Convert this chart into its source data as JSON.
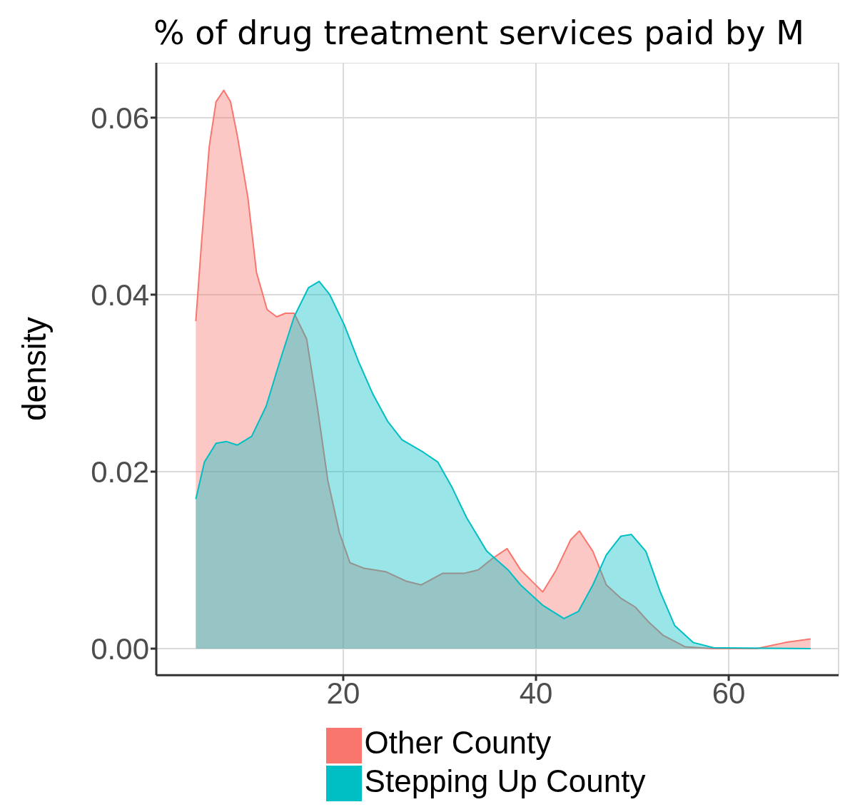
{
  "chart_data": {
    "type": "area",
    "title": "% of drug treatment services paid by M",
    "ylabel": "density",
    "xlim": [
      0.6,
      71.4
    ],
    "xticks": [
      20,
      40,
      60
    ],
    "ylim": [
      -0.003,
      0.0662
    ],
    "yticks": [
      {
        "value": 0,
        "label": "0.00"
      },
      {
        "value": 0.02,
        "label": "0.02"
      },
      {
        "value": 0.04,
        "label": "0.04"
      },
      {
        "value": 0.06,
        "label": "0.06"
      }
    ],
    "grid": true,
    "legend": "bottom",
    "series": [
      {
        "name": "Other County",
        "color": "#f8766d",
        "x": [
          4.7,
          5.3,
          6.1,
          6.8,
          7.6,
          8.3,
          9.0,
          10.1,
          11.0,
          12.1,
          13.1,
          14.0,
          14.9,
          16.2,
          17.3,
          18.4,
          19.6,
          20.7,
          22.1,
          24.4,
          26.6,
          28.1,
          30.3,
          32.5,
          34.0,
          35.5,
          37.0,
          38.4,
          40.7,
          42.1,
          43.6,
          44.5,
          45.9,
          47.3,
          48.8,
          50.3,
          51.7,
          53.2,
          55.5,
          58.4,
          62.9,
          65.9,
          68.5
        ],
        "values": [
          0.037,
          0.046,
          0.0568,
          0.0618,
          0.0631,
          0.0618,
          0.058,
          0.051,
          0.0425,
          0.0383,
          0.0375,
          0.0379,
          0.0379,
          0.035,
          0.0274,
          0.019,
          0.0131,
          0.0097,
          0.0091,
          0.0087,
          0.0076,
          0.0072,
          0.0085,
          0.0085,
          0.0089,
          0.0102,
          0.0113,
          0.0089,
          0.0064,
          0.0089,
          0.0123,
          0.0133,
          0.011,
          0.0072,
          0.0057,
          0.0047,
          0.003,
          0.0015,
          0.0002,
          0,
          0,
          0.0007,
          0.0011
        ]
      },
      {
        "name": "Stepping Up County",
        "color": "#00bfc4",
        "x": [
          4.7,
          5.6,
          6.8,
          7.9,
          9.0,
          10.5,
          12.0,
          13.4,
          14.9,
          16.4,
          17.5,
          18.6,
          20.1,
          21.6,
          23.1,
          24.6,
          26.1,
          28.3,
          29.8,
          31.3,
          32.8,
          34.9,
          37.1,
          38.4,
          40.7,
          42.9,
          44.4,
          45.9,
          47.3,
          48.8,
          49.9,
          51.4,
          52.9,
          54.4,
          56.3,
          58.4,
          68.5
        ],
        "values": [
          0.0169,
          0.0211,
          0.0232,
          0.0234,
          0.023,
          0.024,
          0.0274,
          0.0324,
          0.0375,
          0.0408,
          0.0415,
          0.04,
          0.0366,
          0.0324,
          0.0287,
          0.0257,
          0.0236,
          0.0222,
          0.0211,
          0.0182,
          0.0148,
          0.011,
          0.0089,
          0.0072,
          0.0049,
          0.0034,
          0.0042,
          0.0072,
          0.0106,
          0.0127,
          0.0129,
          0.011,
          0.0064,
          0.0026,
          0.0007,
          0.0001,
          0
        ]
      }
    ]
  }
}
